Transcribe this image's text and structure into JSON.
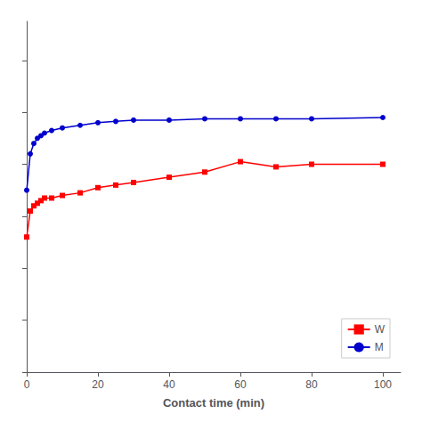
{
  "chart_data": {
    "type": "line",
    "xlabel": "Contact time (min)",
    "x": [
      0,
      1,
      2,
      3,
      4,
      5,
      7,
      10,
      15,
      20,
      25,
      30,
      40,
      50,
      60,
      70,
      80,
      100
    ],
    "series": [
      {
        "name": "W",
        "color": "#ff0000",
        "marker": "square",
        "values": [
          0.52,
          0.62,
          0.64,
          0.65,
          0.66,
          0.67,
          0.67,
          0.68,
          0.69,
          0.71,
          0.72,
          0.73,
          0.75,
          0.77,
          0.81,
          0.79,
          0.8,
          0.8
        ]
      },
      {
        "name": "M",
        "color": "#0000cc",
        "marker": "circle",
        "values": [
          0.7,
          0.84,
          0.88,
          0.9,
          0.91,
          0.92,
          0.93,
          0.94,
          0.95,
          0.96,
          0.965,
          0.97,
          0.97,
          0.975,
          0.975,
          0.975,
          0.975,
          0.98
        ]
      }
    ],
    "xlim": [
      0,
      105
    ],
    "xticks": [
      0,
      20,
      40,
      60,
      80,
      100
    ],
    "ylim": [
      0,
      1.35
    ],
    "yticks": [
      0,
      0.2,
      0.4,
      0.6,
      0.8,
      1.0,
      1.2
    ],
    "tick_labels": "x",
    "grid": false,
    "legend": "lower right"
  }
}
